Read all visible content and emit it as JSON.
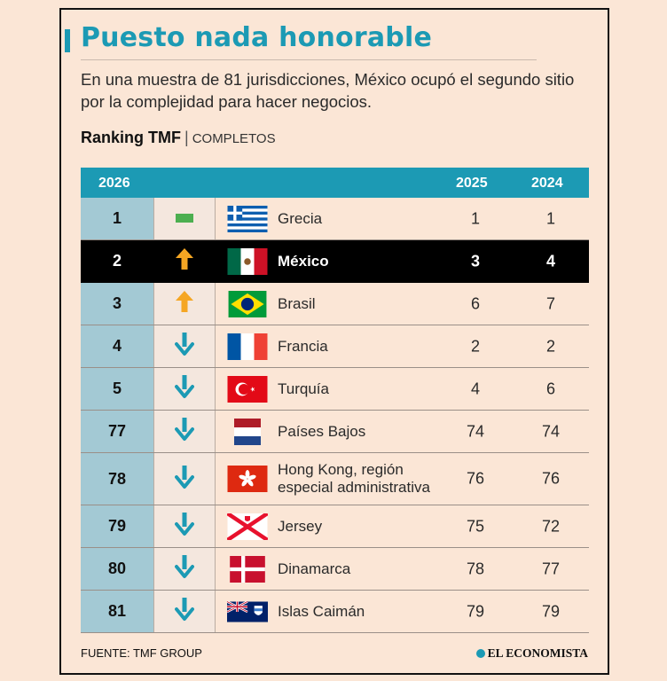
{
  "title": "Puesto nada honorable",
  "subtitle": "En una muestra de 81 jurisdicciones, México ocupó el segundo sitio por la complejidad para hacer negocios.",
  "ranking": {
    "label": "Ranking TMF",
    "separator": "|",
    "sublabel": "COMPLETOS"
  },
  "table": {
    "headers": {
      "rank": "2026",
      "y2025": "2025",
      "y2024": "2024"
    },
    "rows": [
      {
        "rank": "1",
        "trend": "same",
        "flag": "greece-flag",
        "country": "Grecia",
        "y2025": "1",
        "y2024": "1"
      },
      {
        "rank": "2",
        "trend": "up",
        "flag": "mexico-flag",
        "country": "México",
        "y2025": "3",
        "y2024": "4"
      },
      {
        "rank": "3",
        "trend": "up",
        "flag": "brazil-flag",
        "country": "Brasil",
        "y2025": "6",
        "y2024": "7"
      },
      {
        "rank": "4",
        "trend": "down",
        "flag": "france-flag",
        "country": "Francia",
        "y2025": "2",
        "y2024": "2"
      },
      {
        "rank": "5",
        "trend": "down",
        "flag": "turkey-flag",
        "country": "Turquía",
        "y2025": "4",
        "y2024": "6"
      },
      {
        "rank": "77",
        "trend": "down",
        "flag": "netherlands-flag",
        "country": "Países Bajos",
        "y2025": "74",
        "y2024": "74"
      },
      {
        "rank": "78",
        "trend": "down",
        "flag": "hong-kong-flag",
        "country": "Hong Kong, región",
        "country2": "especial administrativa",
        "y2025": "76",
        "y2024": "76"
      },
      {
        "rank": "79",
        "trend": "down",
        "flag": "jersey-flag",
        "country": "Jersey",
        "y2025": "75",
        "y2024": "72"
      },
      {
        "rank": "80",
        "trend": "down",
        "flag": "denmark-flag",
        "country": "Dinamarca",
        "y2025": "78",
        "y2024": "77"
      },
      {
        "rank": "81",
        "trend": "down",
        "flag": "cayman-islands-flag",
        "country": "Islas Caimán",
        "y2025": "79",
        "y2024": "79"
      }
    ]
  },
  "source": "FUENTE: TMF GROUP",
  "brand": "EL ECONOMISTA",
  "colors": {
    "accent": "#1c9ab4",
    "up": "#f5a623",
    "same": "#4caf50",
    "down": "#1c9ab4",
    "highlight": "#000000"
  }
}
